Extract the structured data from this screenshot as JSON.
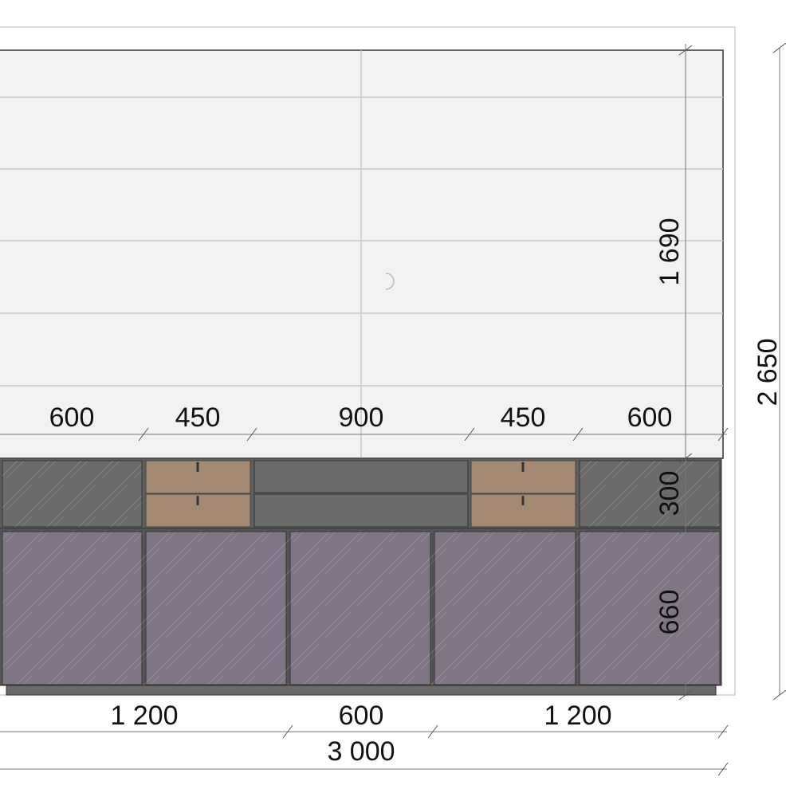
{
  "dimensions": {
    "top_widths": [
      "600",
      "450",
      "900",
      "450",
      "600"
    ],
    "bottom_widths": [
      "1 200",
      "600",
      "1 200"
    ],
    "total_width": "3 000",
    "wall_height": "1 690",
    "upper_height": "300",
    "lower_height": "660",
    "total_height": "2 650"
  }
}
